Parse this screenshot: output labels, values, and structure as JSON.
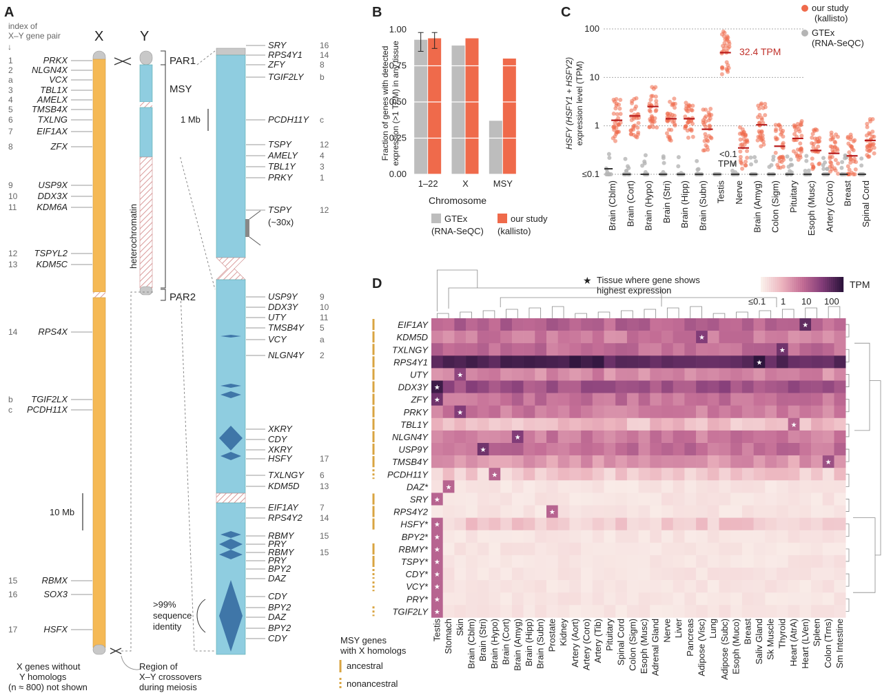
{
  "panelA": {
    "label": "A",
    "index_caption": [
      "index of",
      "X–Y gene pair"
    ],
    "x_title": "X",
    "y_title": "Y",
    "par1": "PAR1",
    "msy": "MSY",
    "par2": "PAR2",
    "heterochromatin": "heterochromatin",
    "scale_small": "1 Mb",
    "scale_large": "10 Mb",
    "seq_identity": [
      ">99%",
      "sequence",
      "identity"
    ],
    "footer_left": [
      "X genes without",
      "Y homologs",
      "(n ≈ 800) not shown"
    ],
    "footer_right": [
      "Region of",
      "X–Y crossovers",
      "during meiosis"
    ],
    "x_genes": [
      {
        "idx": "1",
        "name": "PRKX"
      },
      {
        "idx": "2",
        "name": "NLGN4X"
      },
      {
        "idx": "a",
        "name": "VCX"
      },
      {
        "idx": "3",
        "name": "TBL1X"
      },
      {
        "idx": "4",
        "name": "AMELX"
      },
      {
        "idx": "5",
        "name": "TMSB4X"
      },
      {
        "idx": "6",
        "name": "TXLNG"
      },
      {
        "idx": "7",
        "name": "EIF1AX"
      },
      {
        "idx": "8",
        "name": "ZFX"
      },
      {
        "idx": "9",
        "name": "USP9X"
      },
      {
        "idx": "10",
        "name": "DDX3X"
      },
      {
        "idx": "11",
        "name": "KDM6A"
      },
      {
        "idx": "12",
        "name": "TSPYL2"
      },
      {
        "idx": "13",
        "name": "KDM5C"
      },
      {
        "idx": "14",
        "name": "RPS4X"
      },
      {
        "idx": "b",
        "name": "TGIF2LX"
      },
      {
        "idx": "c",
        "name": "PCDH11X"
      },
      {
        "idx": "15",
        "name": "RBMX"
      },
      {
        "idx": "16",
        "name": "SOX3"
      },
      {
        "idx": "17",
        "name": "HSFX"
      }
    ],
    "y_genes": [
      {
        "name": "SRY",
        "idx": "16"
      },
      {
        "name": "RPS4Y1",
        "idx": "14"
      },
      {
        "name": "ZFY",
        "idx": "8"
      },
      {
        "name": "TGIF2LY",
        "idx": "b"
      },
      {
        "name": "PCDH11Y",
        "idx": "c"
      },
      {
        "name": "TSPY",
        "idx": "12"
      },
      {
        "name": "AMELY",
        "idx": "4"
      },
      {
        "name": "TBL1Y",
        "idx": "3"
      },
      {
        "name": "PRKY",
        "idx": "1"
      },
      {
        "name": "TSPY",
        "idx": "12"
      },
      {
        "name": "(~30x)",
        "idx": ""
      },
      {
        "name": "USP9Y",
        "idx": "9"
      },
      {
        "name": "DDX3Y",
        "idx": "10"
      },
      {
        "name": "UTY",
        "idx": "11"
      },
      {
        "name": "TMSB4Y",
        "idx": "5"
      },
      {
        "name": "VCY",
        "idx": "a"
      },
      {
        "name": "NLGN4Y",
        "idx": "2"
      },
      {
        "name": "XKRY",
        "idx": ""
      },
      {
        "name": "CDY",
        "idx": ""
      },
      {
        "name": "XKRY",
        "idx": ""
      },
      {
        "name": "HSFY",
        "idx": "17"
      },
      {
        "name": "TXLNGY",
        "idx": "6"
      },
      {
        "name": "KDM5D",
        "idx": "13"
      },
      {
        "name": "EIF1AY",
        "idx": "7"
      },
      {
        "name": "RPS4Y2",
        "idx": "14"
      },
      {
        "name": "RBMY",
        "idx": "15"
      },
      {
        "name": "PRY",
        "idx": ""
      },
      {
        "name": "RBMY",
        "idx": "15"
      },
      {
        "name": "PRY",
        "idx": ""
      },
      {
        "name": "BPY2",
        "idx": ""
      },
      {
        "name": "DAZ",
        "idx": ""
      },
      {
        "name": "CDY",
        "idx": ""
      },
      {
        "name": "BPY2",
        "idx": ""
      },
      {
        "name": "DAZ",
        "idx": ""
      },
      {
        "name": "BPY2",
        "idx": ""
      },
      {
        "name": "CDY",
        "idx": ""
      }
    ]
  },
  "panelB": {
    "label": "B",
    "ylabel": [
      "Fraction of genes with detected",
      "expression (>1 TPM) in any tissue"
    ],
    "xlabel": "Chromosome",
    "legend": [
      {
        "name": "GTEx",
        "sub": "(RNA-SeQC)",
        "color": "#bdbdbd"
      },
      {
        "name": "our study",
        "sub": "(kallisto)",
        "color": "#ef6a4b"
      }
    ]
  },
  "panelC": {
    "label": "C",
    "ylabel": [
      "HSFY (HSFY1 + HSFY2)",
      "expression level (TPM)"
    ],
    "annotation": "32.4 TPM",
    "low_annotation": [
      "<0.1",
      "TPM"
    ],
    "legend": [
      {
        "name": "our study",
        "sub": "(kallisto)",
        "color": "#ef6a4b"
      },
      {
        "name": "GTEx",
        "sub": "(RNA-SeQC)",
        "color": "#b5b5b5"
      }
    ]
  },
  "panelD": {
    "label": "D",
    "star_note": [
      "Tissue where gene shows",
      "highest expression"
    ],
    "colorbar_title": "TPM",
    "colorbar_ticks": [
      "≤0.1",
      "1",
      "10",
      "100"
    ],
    "legend_title": [
      "MSY genes",
      "with X homologs"
    ],
    "legend_items": [
      "ancestral",
      "nonancestral"
    ],
    "tissues": [
      "Testis",
      "Stomach",
      "Skin",
      "Brain (Cblm)",
      "Brain (Stri)",
      "Brain (Hypo)",
      "Brain (Cort)",
      "Brain (Amyg)",
      "Brain (Hipp)",
      "Brain (Subn)",
      "Prostate",
      "Kidney",
      "Artery (Aort)",
      "Artery (Coro)",
      "Artery (Tib)",
      "Pituitary",
      "Spinal Cord",
      "Colon (Sigm)",
      "Esoph (Musc)",
      "Adrenal Gland",
      "Nerve",
      "Liver",
      "Pancreas",
      "Adipose (Visc)",
      "Lung",
      "Adipose (Subc)",
      "Esoph (Muco)",
      "Breast",
      "Saliv Gland",
      "Sk Muscle",
      "Thyroid",
      "Heart (AtrA)",
      "Heart (LVen)",
      "Spleen",
      "Colon (Trns)",
      "Sm Intestine"
    ],
    "genes": [
      {
        "name": "EIF1AY",
        "group": "ancestral",
        "star": 32
      },
      {
        "name": "KDM5D",
        "group": "ancestral",
        "star": 23
      },
      {
        "name": "TXLNGY",
        "group": "ancestral",
        "star": 30
      },
      {
        "name": "RPS4Y1",
        "group": "ancestral",
        "star": 28
      },
      {
        "name": "UTY",
        "group": "ancestral",
        "star": 2
      },
      {
        "name": "DDX3Y",
        "group": "ancestral",
        "star": 0
      },
      {
        "name": "ZFY",
        "group": "ancestral",
        "star": 0
      },
      {
        "name": "PRKY",
        "group": "ancestral",
        "star": 2
      },
      {
        "name": "TBL1Y",
        "group": "ancestral",
        "star": 31
      },
      {
        "name": "NLGN4Y",
        "group": "ancestral",
        "star": 7
      },
      {
        "name": "USP9Y",
        "group": "ancestral",
        "star": 4
      },
      {
        "name": "TMSB4Y",
        "group": "ancestral",
        "star": 34
      },
      {
        "name": "PCDH11Y",
        "group": "nonancestral",
        "star": 5
      },
      {
        "name": "DAZ*",
        "group": "",
        "star": 1
      },
      {
        "name": "SRY",
        "group": "ancestral",
        "star": 0
      },
      {
        "name": "RPS4Y2",
        "group": "ancestral",
        "star": 10
      },
      {
        "name": "HSFY*",
        "group": "ancestral",
        "star": 0
      },
      {
        "name": "BPY2*",
        "group": "",
        "star": 0
      },
      {
        "name": "RBMY*",
        "group": "ancestral",
        "star": 0
      },
      {
        "name": "TSPY*",
        "group": "ancestral",
        "star": 0
      },
      {
        "name": "CDY*",
        "group": "nonancestral",
        "star": 0
      },
      {
        "name": "VCY*",
        "group": "nonancestral",
        "star": 0
      },
      {
        "name": "PRY*",
        "group": "",
        "star": 0
      },
      {
        "name": "TGIF2LY",
        "group": "nonancestral",
        "star": 0
      }
    ]
  },
  "chart_data": [
    {
      "type": "bar",
      "panel": "B",
      "categories": [
        "1–22",
        "X",
        "MSY"
      ],
      "series": [
        {
          "name": "GTEx (RNA-SeQC)",
          "values": [
            0.93,
            0.89,
            0.37
          ]
        },
        {
          "name": "our study (kallisto)",
          "values": [
            0.94,
            0.94,
            0.8
          ]
        }
      ],
      "error_bars": {
        "1–22": [
          [
            0.85,
            0.98
          ],
          [
            0.87,
            0.98
          ]
        ]
      },
      "xlabel": "Chromosome",
      "ylabel": "Fraction of genes with detected expression (>1 TPM) in any tissue",
      "ylim": [
        0,
        1
      ],
      "yticks": [
        "0.00",
        "0.25",
        "0.50",
        "0.75",
        "1.00"
      ],
      "grid": true,
      "legend": "bottom"
    },
    {
      "type": "scatter",
      "panel": "C",
      "scale": "log",
      "yticks": [
        "≤0.1",
        "1",
        "10",
        "100"
      ],
      "categories": [
        "Brain (Cblm)",
        "Brain (Cort)",
        "Brain (Hypo)",
        "Brain (Stri)",
        "Brain (Hipp)",
        "Brain (Subn)",
        "Testis",
        "Nerve",
        "Brain (Amyg)",
        "Colon (Sigm)",
        "Pituitary",
        "Esoph (Musc)",
        "Artery (Coro)",
        "Breast",
        "Spinal Cord"
      ],
      "series": [
        {
          "name": "our study (kallisto)",
          "medians": [
            1.3,
            1.6,
            2.5,
            1.4,
            1.4,
            0.85,
            32.4,
            0.35,
            1.05,
            0.38,
            0.55,
            0.31,
            0.27,
            0.24,
            0.5
          ]
        },
        {
          "name": "GTEx (RNA-SeQC)",
          "medians": [
            0.13,
            0.1,
            0.1,
            0.1,
            0.1,
            0.1,
            0.1,
            0.1,
            0.1,
            0.1,
            0.1,
            0.1,
            0.1,
            0.1,
            0.1
          ]
        }
      ],
      "ylabel": "HSFY (HSFY1 + HSFY2) expression level (TPM)",
      "legend": "top-right"
    },
    {
      "type": "heatmap",
      "panel": "D",
      "value_scale": "log TPM, ≤0.1 to 100",
      "rows": [
        "EIF1AY",
        "KDM5D",
        "TXLNGY",
        "RPS4Y1",
        "UTY",
        "DDX3Y",
        "ZFY",
        "PRKY",
        "TBL1Y",
        "NLGN4Y",
        "USP9Y",
        "TMSB4Y",
        "PCDH11Y",
        "DAZ*",
        "SRY",
        "RPS4Y2",
        "HSFY*",
        "BPY2*",
        "RBMY*",
        "TSPY*",
        "CDY*",
        "VCY*",
        "PRY*",
        "TGIF2LY"
      ],
      "columns": "panelD.tissues",
      "row_levels": [
        0.55,
        0.45,
        0.5,
        0.9,
        0.4,
        0.65,
        0.5,
        0.45,
        0.2,
        0.45,
        0.5,
        0.35,
        0.15,
        0.05,
        0.05,
        0.05,
        0.15,
        0.02,
        0.02,
        0.02,
        0.02,
        0.02,
        0.02,
        0.02
      ]
    }
  ]
}
